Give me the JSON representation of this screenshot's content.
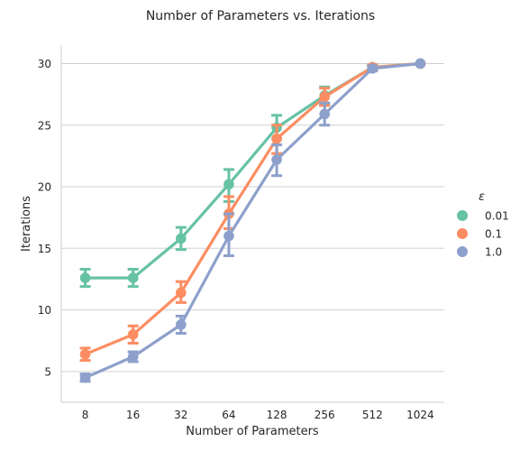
{
  "chart_data": {
    "type": "line",
    "title": "Number of Parameters vs. Iterations",
    "xlabel": "Number of Parameters",
    "ylabel": "Iterations",
    "categories": [
      "8",
      "16",
      "32",
      "64",
      "128",
      "256",
      "512",
      "1024"
    ],
    "yticks": [
      5,
      10,
      15,
      20,
      25,
      30
    ],
    "ylim": [
      2.5,
      31.5
    ],
    "grid": "horizontal",
    "legend": {
      "title": "ε",
      "placement": "right"
    },
    "error_bars": true,
    "series": [
      {
        "name": "0.01",
        "color": "#66c2a5",
        "values": [
          12.6,
          12.6,
          15.8,
          20.2,
          24.8,
          27.4,
          29.7,
          30.0
        ],
        "err_low": [
          11.9,
          11.9,
          14.9,
          18.8,
          23.9,
          26.7,
          29.5,
          30.0
        ],
        "err_high": [
          13.3,
          13.3,
          16.7,
          21.4,
          25.8,
          28.1,
          29.9,
          30.0
        ]
      },
      {
        "name": "0.1",
        "color": "#fc8d62",
        "values": [
          6.4,
          8.0,
          11.4,
          17.8,
          23.9,
          27.3,
          29.7,
          30.0
        ],
        "err_low": [
          5.9,
          7.3,
          10.6,
          16.6,
          22.7,
          26.6,
          29.5,
          30.0
        ],
        "err_high": [
          6.9,
          8.7,
          12.3,
          19.2,
          25.0,
          28.0,
          29.9,
          30.0
        ]
      },
      {
        "name": "1.0",
        "color": "#8da0cb",
        "values": [
          4.5,
          6.2,
          8.8,
          16.0,
          22.2,
          25.9,
          29.6,
          30.0
        ],
        "err_low": [
          4.2,
          5.8,
          8.1,
          14.4,
          20.9,
          25.0,
          29.4,
          30.0
        ],
        "err_high": [
          4.8,
          6.6,
          9.5,
          17.8,
          23.4,
          26.8,
          29.8,
          30.0
        ]
      }
    ]
  }
}
